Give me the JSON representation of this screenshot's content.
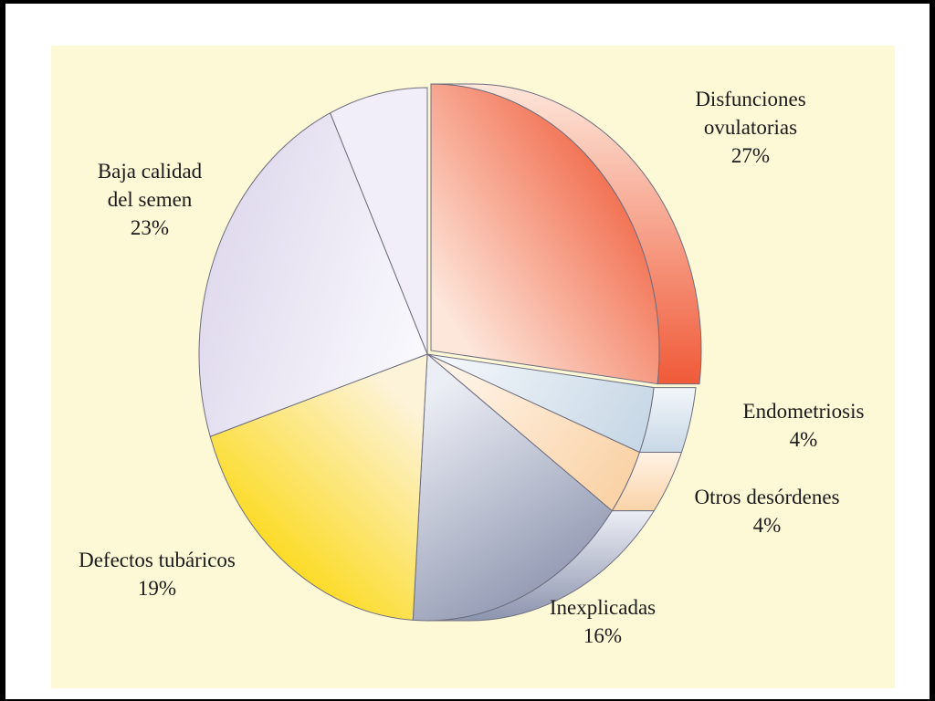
{
  "chart_data": {
    "type": "pie",
    "title": "",
    "slices": [
      {
        "label_lines": [
          "Disfunciones",
          "ovulatorias"
        ],
        "value": 27,
        "value_label": "27%",
        "color": "#f05a38",
        "color_light": "#fde6da",
        "exploded": true
      },
      {
        "label_lines": [
          "Endometriosis"
        ],
        "value": 4,
        "value_label": "4%",
        "color": "#c8d8e6",
        "color_light": "#f2f6fa",
        "exploded": false
      },
      {
        "label_lines": [
          "Otros desórdenes"
        ],
        "value": 4,
        "value_label": "4%",
        "color": "#fad3a8",
        "color_light": "#fff3e6",
        "exploded": false
      },
      {
        "label_lines": [
          "Inexplicadas"
        ],
        "value": 16,
        "value_label": "16%",
        "color": "#8c94ae",
        "color_light": "#eceef5",
        "exploded": false
      },
      {
        "label_lines": [
          "Defectos tubáricos"
        ],
        "value": 19,
        "value_label": "19%",
        "color": "#fcd600",
        "color_light": "#fdf3d8",
        "exploded": false
      },
      {
        "label_lines": [
          "Baja calidad",
          "del semen"
        ],
        "value": 23,
        "value_label": "23%",
        "color": "#ded8ec",
        "color_light": "#f9f8fd",
        "exploded": false
      }
    ],
    "remainder_color": "#f1eefa",
    "background_color": "#fdf8d6"
  }
}
